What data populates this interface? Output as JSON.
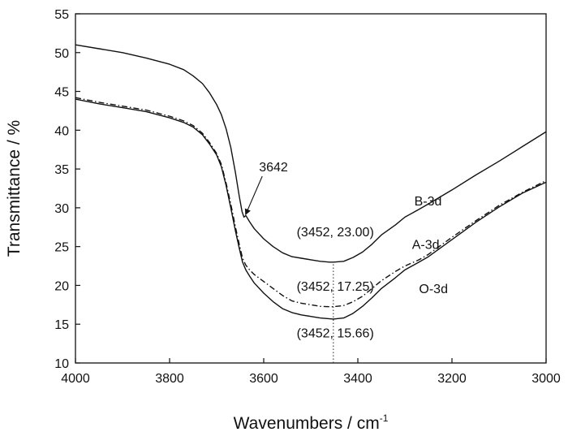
{
  "chart_data": {
    "type": "line",
    "title": "",
    "xlabel": "Wavenumbers / cm",
    "xlabel_sup": "-1",
    "ylabel": "Transmittance / %",
    "xlim": [
      4000,
      3000
    ],
    "ylim": [
      10,
      55
    ],
    "x_reversed": true,
    "grid": false,
    "xticks": [
      4000,
      3800,
      3600,
      3400,
      3200,
      3000
    ],
    "yticks": [
      10,
      15,
      20,
      25,
      30,
      35,
      40,
      45,
      50,
      55
    ],
    "series": [
      {
        "name": "B-3d",
        "style": "solid",
        "points": [
          [
            4000,
            51.0
          ],
          [
            3950,
            50.5
          ],
          [
            3900,
            50.0
          ],
          [
            3850,
            49.3
          ],
          [
            3800,
            48.5
          ],
          [
            3770,
            47.8
          ],
          [
            3750,
            47.0
          ],
          [
            3730,
            46.0
          ],
          [
            3715,
            44.8
          ],
          [
            3700,
            43.3
          ],
          [
            3690,
            42.0
          ],
          [
            3680,
            40.2
          ],
          [
            3670,
            37.8
          ],
          [
            3660,
            34.5
          ],
          [
            3652,
            31.5
          ],
          [
            3646,
            29.5
          ],
          [
            3642,
            28.8
          ],
          [
            3638,
            29.0
          ],
          [
            3630,
            28.2
          ],
          [
            3620,
            27.3
          ],
          [
            3600,
            26.0
          ],
          [
            3580,
            25.0
          ],
          [
            3560,
            24.2
          ],
          [
            3540,
            23.7
          ],
          [
            3520,
            23.5
          ],
          [
            3500,
            23.3
          ],
          [
            3480,
            23.1
          ],
          [
            3460,
            23.0
          ],
          [
            3452,
            23.0
          ],
          [
            3430,
            23.1
          ],
          [
            3410,
            23.6
          ],
          [
            3390,
            24.3
          ],
          [
            3370,
            25.3
          ],
          [
            3350,
            26.5
          ],
          [
            3320,
            27.8
          ],
          [
            3300,
            28.8
          ],
          [
            3270,
            29.8
          ],
          [
            3250,
            30.5
          ],
          [
            3200,
            32.3
          ],
          [
            3150,
            34.2
          ],
          [
            3100,
            36.0
          ],
          [
            3050,
            37.9
          ],
          [
            3000,
            39.8
          ]
        ]
      },
      {
        "name": "A-3d",
        "style": "dashdot",
        "points": [
          [
            4000,
            44.2
          ],
          [
            3950,
            43.6
          ],
          [
            3900,
            43.1
          ],
          [
            3850,
            42.6
          ],
          [
            3800,
            41.8
          ],
          [
            3770,
            41.2
          ],
          [
            3750,
            40.6
          ],
          [
            3730,
            39.6
          ],
          [
            3715,
            38.4
          ],
          [
            3700,
            37.0
          ],
          [
            3690,
            35.6
          ],
          [
            3680,
            33.2
          ],
          [
            3670,
            30.5
          ],
          [
            3660,
            27.5
          ],
          [
            3652,
            25.3
          ],
          [
            3645,
            23.5
          ],
          [
            3638,
            22.6
          ],
          [
            3630,
            22.0
          ],
          [
            3620,
            21.4
          ],
          [
            3600,
            20.5
          ],
          [
            3580,
            19.6
          ],
          [
            3560,
            18.7
          ],
          [
            3540,
            18.0
          ],
          [
            3520,
            17.7
          ],
          [
            3500,
            17.5
          ],
          [
            3480,
            17.3
          ],
          [
            3460,
            17.25
          ],
          [
            3452,
            17.25
          ],
          [
            3430,
            17.4
          ],
          [
            3410,
            17.9
          ],
          [
            3390,
            18.6
          ],
          [
            3370,
            19.6
          ],
          [
            3350,
            20.6
          ],
          [
            3320,
            21.8
          ],
          [
            3300,
            22.5
          ],
          [
            3270,
            23.3
          ],
          [
            3250,
            24.0
          ],
          [
            3200,
            26.2
          ],
          [
            3150,
            28.3
          ],
          [
            3100,
            30.3
          ],
          [
            3050,
            32.0
          ],
          [
            3000,
            33.5
          ]
        ]
      },
      {
        "name": "O-3d",
        "style": "solid",
        "points": [
          [
            4000,
            44.0
          ],
          [
            3950,
            43.4
          ],
          [
            3900,
            42.9
          ],
          [
            3850,
            42.4
          ],
          [
            3800,
            41.6
          ],
          [
            3770,
            41.0
          ],
          [
            3750,
            40.4
          ],
          [
            3730,
            39.4
          ],
          [
            3715,
            38.2
          ],
          [
            3700,
            36.8
          ],
          [
            3690,
            35.3
          ],
          [
            3680,
            32.9
          ],
          [
            3670,
            30.0
          ],
          [
            3660,
            27.0
          ],
          [
            3652,
            24.8
          ],
          [
            3645,
            23.0
          ],
          [
            3638,
            22.0
          ],
          [
            3630,
            21.2
          ],
          [
            3620,
            20.3
          ],
          [
            3600,
            19.0
          ],
          [
            3580,
            17.9
          ],
          [
            3560,
            17.0
          ],
          [
            3540,
            16.5
          ],
          [
            3520,
            16.2
          ],
          [
            3500,
            16.0
          ],
          [
            3480,
            15.8
          ],
          [
            3460,
            15.7
          ],
          [
            3452,
            15.66
          ],
          [
            3430,
            15.8
          ],
          [
            3410,
            16.4
          ],
          [
            3390,
            17.3
          ],
          [
            3370,
            18.4
          ],
          [
            3350,
            19.6
          ],
          [
            3320,
            21.0
          ],
          [
            3300,
            22.0
          ],
          [
            3270,
            23.0
          ],
          [
            3250,
            23.7
          ],
          [
            3200,
            25.9
          ],
          [
            3150,
            28.1
          ],
          [
            3100,
            30.1
          ],
          [
            3050,
            31.9
          ],
          [
            3000,
            33.3
          ]
        ]
      }
    ],
    "series_labels": [
      {
        "text": "B-3d",
        "x": 3280,
        "y": 30.3
      },
      {
        "text": "A-3d",
        "x": 3285,
        "y": 24.7
      },
      {
        "text": "O-3d",
        "x": 3270,
        "y": 19.0
      }
    ],
    "annotations": [
      {
        "text": "3642",
        "x": 3610,
        "y": 34.7,
        "arrow_to": [
          3642,
          28.8
        ]
      },
      {
        "text": "(3452, 23.00)",
        "x": 3530,
        "y": 26.3
      },
      {
        "text": "(3452, 17.25)",
        "x": 3530,
        "y": 19.3
      },
      {
        "text": "(3452, 15.66)",
        "x": 3530,
        "y": 13.3
      }
    ],
    "vline": {
      "x": 3452,
      "y_from": 10,
      "y_to": 23.0,
      "style": "dotted"
    }
  }
}
